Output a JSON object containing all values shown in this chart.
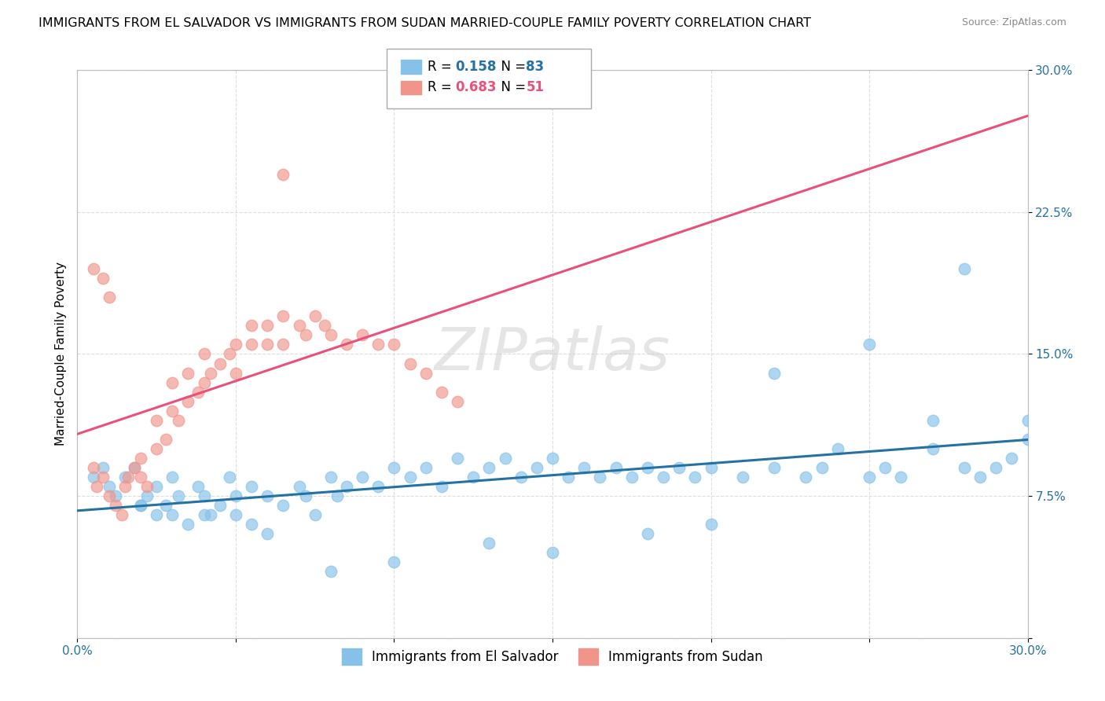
{
  "title": "IMMIGRANTS FROM EL SALVADOR VS IMMIGRANTS FROM SUDAN MARRIED-COUPLE FAMILY POVERTY CORRELATION CHART",
  "source": "Source: ZipAtlas.com",
  "ylabel": "Married-Couple Family Poverty",
  "watermark": "ZIPatlas",
  "xlim": [
    0.0,
    0.3
  ],
  "ylim": [
    0.0,
    0.3
  ],
  "xticks": [
    0.0,
    0.05,
    0.1,
    0.15,
    0.2,
    0.25,
    0.3
  ],
  "yticks": [
    0.0,
    0.075,
    0.15,
    0.225,
    0.3
  ],
  "R_salvador": 0.158,
  "N_salvador": 83,
  "R_sudan": 0.683,
  "N_sudan": 51,
  "color_salvador": "#85c1e9",
  "color_sudan": "#f1948a",
  "line_color_salvador": "#2471a3",
  "line_color_sudan": "#e8527a",
  "background_color": "#ffffff",
  "grid_color": "#dddddd",
  "legend_label_salvador": "Immigrants from El Salvador",
  "legend_label_sudan": "Immigrants from Sudan",
  "title_fontsize": 11.5,
  "label_fontsize": 11,
  "tick_fontsize": 11,
  "sal_x": [
    0.005,
    0.008,
    0.01,
    0.012,
    0.015,
    0.018,
    0.02,
    0.022,
    0.025,
    0.025,
    0.028,
    0.03,
    0.03,
    0.032,
    0.035,
    0.038,
    0.04,
    0.042,
    0.045,
    0.048,
    0.05,
    0.05,
    0.055,
    0.055,
    0.06,
    0.065,
    0.07,
    0.072,
    0.075,
    0.08,
    0.082,
    0.085,
    0.09,
    0.095,
    0.1,
    0.105,
    0.11,
    0.115,
    0.12,
    0.125,
    0.13,
    0.135,
    0.14,
    0.145,
    0.15,
    0.155,
    0.16,
    0.165,
    0.17,
    0.175,
    0.18,
    0.185,
    0.19,
    0.195,
    0.2,
    0.21,
    0.22,
    0.23,
    0.235,
    0.24,
    0.25,
    0.255,
    0.26,
    0.27,
    0.27,
    0.28,
    0.285,
    0.29,
    0.295,
    0.3,
    0.3,
    0.28,
    0.25,
    0.22,
    0.2,
    0.18,
    0.15,
    0.13,
    0.1,
    0.08,
    0.06,
    0.04,
    0.02
  ],
  "sal_y": [
    0.085,
    0.09,
    0.08,
    0.075,
    0.085,
    0.09,
    0.07,
    0.075,
    0.08,
    0.065,
    0.07,
    0.065,
    0.085,
    0.075,
    0.06,
    0.08,
    0.075,
    0.065,
    0.07,
    0.085,
    0.075,
    0.065,
    0.08,
    0.06,
    0.075,
    0.07,
    0.08,
    0.075,
    0.065,
    0.085,
    0.075,
    0.08,
    0.085,
    0.08,
    0.09,
    0.085,
    0.09,
    0.08,
    0.095,
    0.085,
    0.09,
    0.095,
    0.085,
    0.09,
    0.095,
    0.085,
    0.09,
    0.085,
    0.09,
    0.085,
    0.09,
    0.085,
    0.09,
    0.085,
    0.09,
    0.085,
    0.09,
    0.085,
    0.09,
    0.1,
    0.085,
    0.09,
    0.085,
    0.115,
    0.1,
    0.09,
    0.085,
    0.09,
    0.095,
    0.115,
    0.105,
    0.195,
    0.155,
    0.14,
    0.06,
    0.055,
    0.045,
    0.05,
    0.04,
    0.035,
    0.055,
    0.065,
    0.07
  ],
  "sud_x": [
    0.005,
    0.006,
    0.008,
    0.01,
    0.012,
    0.014,
    0.015,
    0.016,
    0.018,
    0.02,
    0.02,
    0.022,
    0.025,
    0.025,
    0.028,
    0.03,
    0.03,
    0.032,
    0.035,
    0.035,
    0.038,
    0.04,
    0.04,
    0.042,
    0.045,
    0.048,
    0.05,
    0.05,
    0.055,
    0.055,
    0.06,
    0.06,
    0.065,
    0.065,
    0.07,
    0.072,
    0.075,
    0.078,
    0.08,
    0.085,
    0.09,
    0.095,
    0.1,
    0.105,
    0.11,
    0.115,
    0.12,
    0.005,
    0.008,
    0.01,
    0.065
  ],
  "sud_y": [
    0.09,
    0.08,
    0.085,
    0.075,
    0.07,
    0.065,
    0.08,
    0.085,
    0.09,
    0.085,
    0.095,
    0.08,
    0.1,
    0.115,
    0.105,
    0.12,
    0.135,
    0.115,
    0.125,
    0.14,
    0.13,
    0.135,
    0.15,
    0.14,
    0.145,
    0.15,
    0.155,
    0.14,
    0.155,
    0.165,
    0.155,
    0.165,
    0.17,
    0.155,
    0.165,
    0.16,
    0.17,
    0.165,
    0.16,
    0.155,
    0.16,
    0.155,
    0.155,
    0.145,
    0.14,
    0.13,
    0.125,
    0.195,
    0.19,
    0.18,
    0.245
  ]
}
